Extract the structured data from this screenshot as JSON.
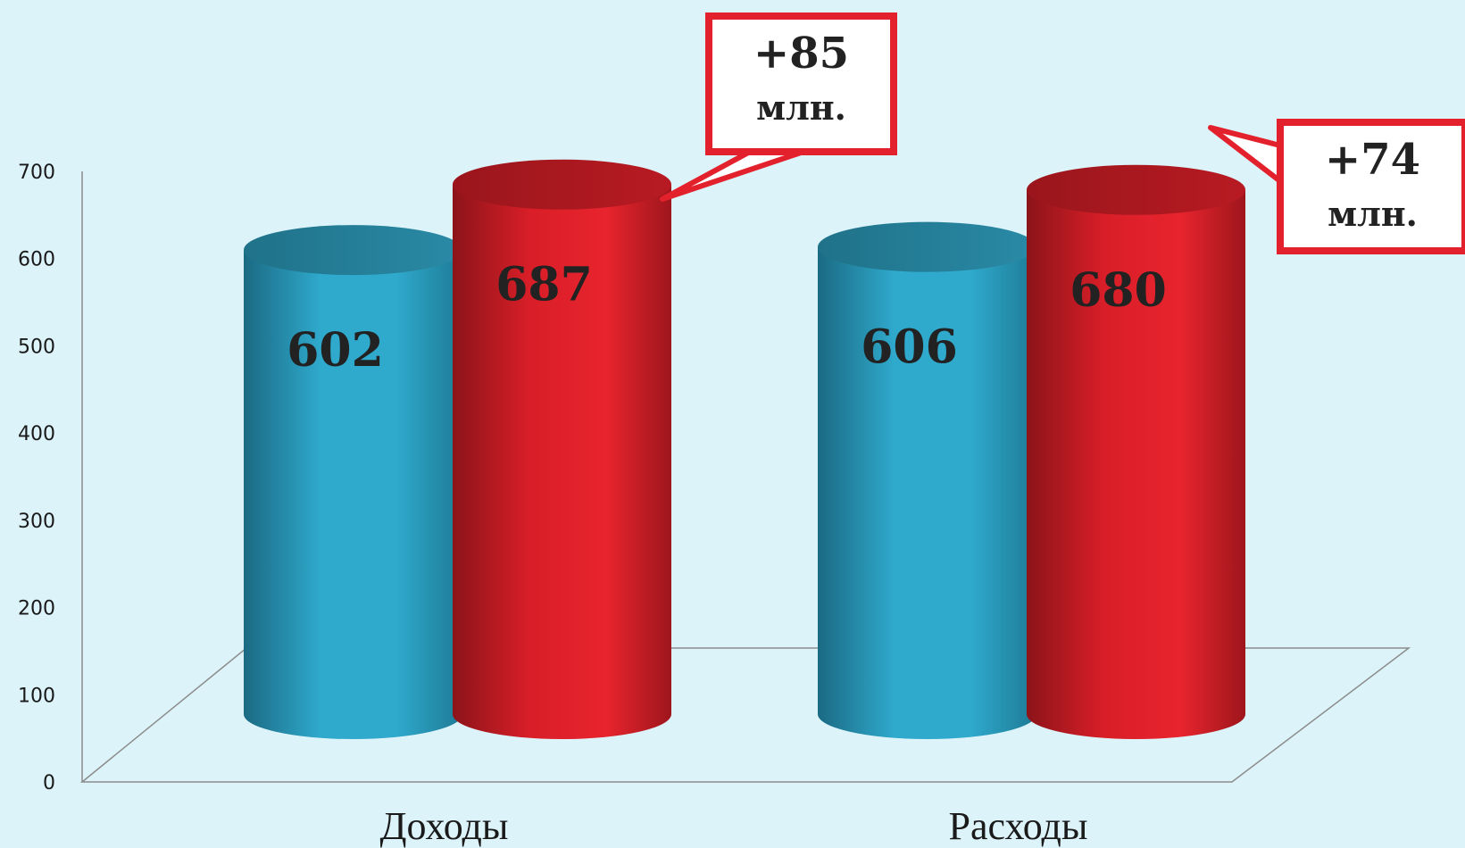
{
  "chart_data": {
    "type": "bar",
    "categories": [
      "Доходы",
      "Расходы"
    ],
    "series": [
      {
        "values": [
          602,
          606
        ],
        "color": "#2fa9cc"
      },
      {
        "values": [
          687,
          680
        ],
        "color": "#e3212d"
      }
    ],
    "data_labels": [
      [
        "602",
        "606"
      ],
      [
        "687",
        "680"
      ]
    ],
    "ylim": [
      0,
      700
    ],
    "yticks": [
      "0",
      "100",
      "200",
      "300",
      "400",
      "500",
      "600",
      "700"
    ],
    "annotations": [
      {
        "category": "Доходы",
        "line1": "+85",
        "line2": "млн."
      },
      {
        "category": "Расходы",
        "line1": "+74",
        "line2": "млн."
      }
    ],
    "grid": false,
    "three_d": true
  },
  "colors": {
    "background": "#dcf3fa",
    "accent": "#e3212d",
    "callout_border": "#e3212d"
  }
}
